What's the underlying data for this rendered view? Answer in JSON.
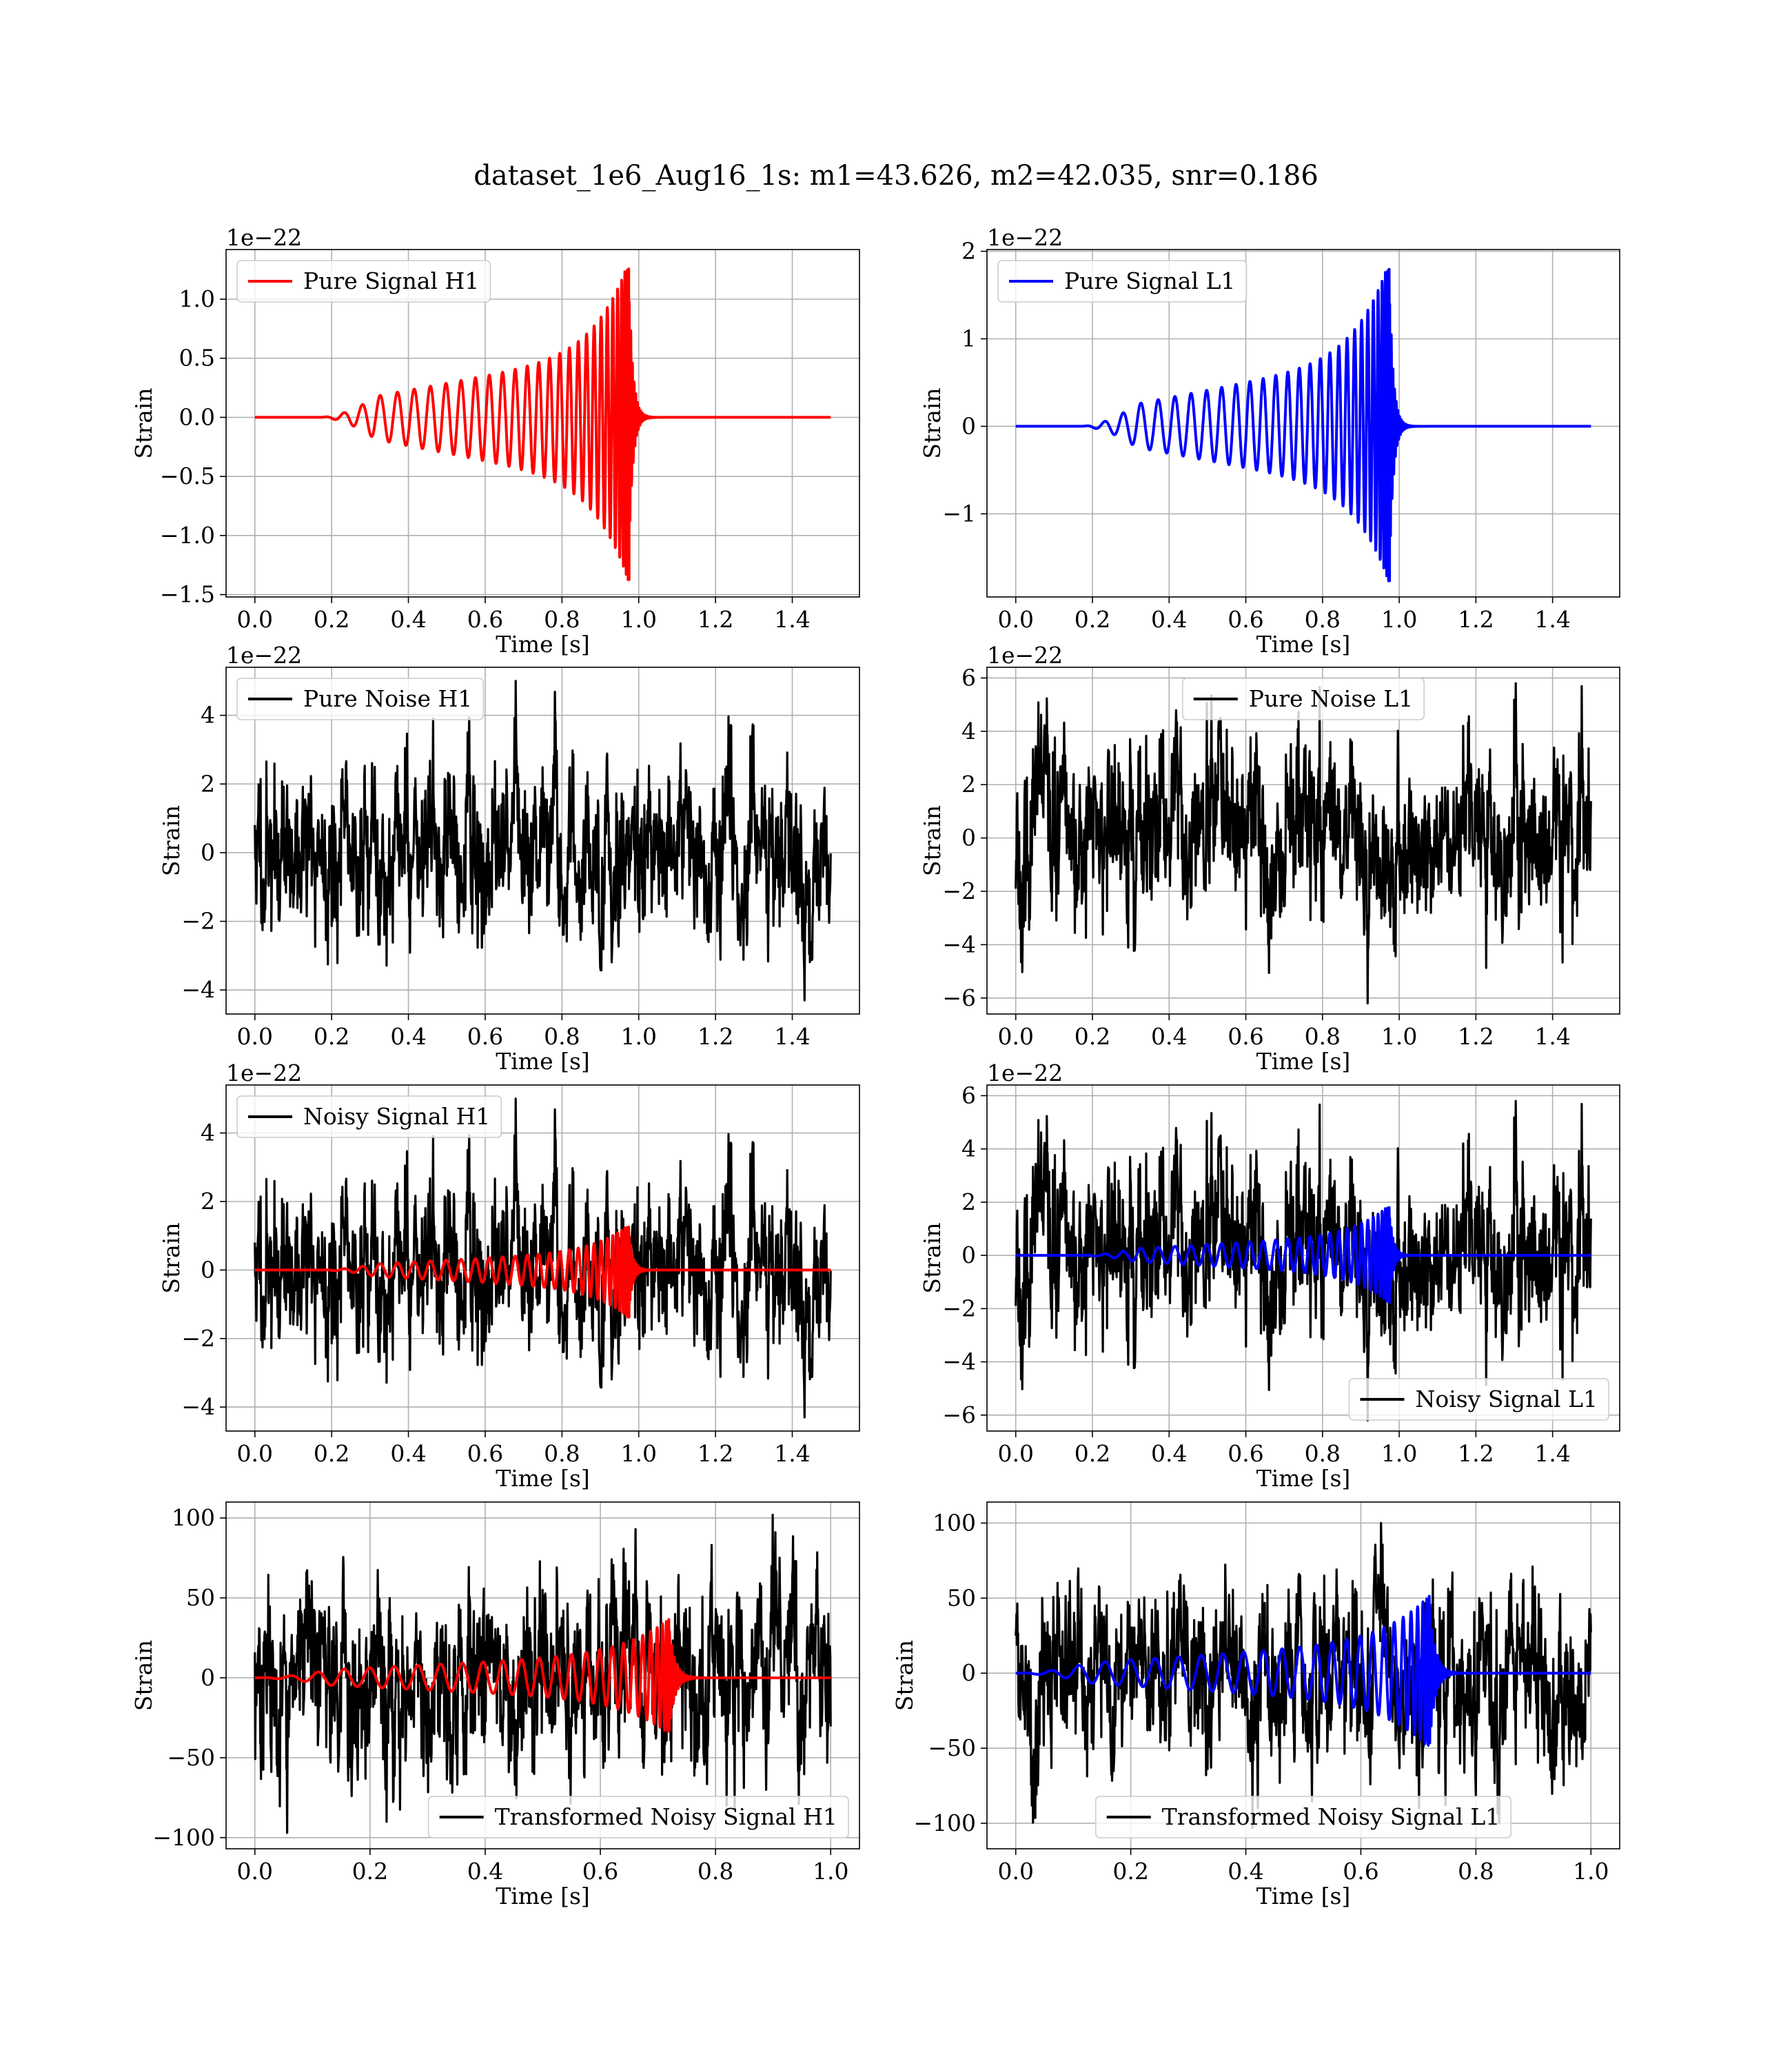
{
  "figure": {
    "title": "dataset_1e6_Aug16_1s: m1=43.626, m2=42.035, snr=0.186",
    "colors": {
      "h1_signal": "#ff0000",
      "l1_signal": "#0000ff",
      "noise": "#000000"
    }
  },
  "chart_data": [
    {
      "type": "line",
      "title": "",
      "xlabel": "Time [s]",
      "ylabel": "Strain",
      "offset_label": "1e−22",
      "xlim": [
        -0.075,
        1.575
      ],
      "ylim": [
        -1.52,
        1.42
      ],
      "xticks": [
        0.0,
        0.2,
        0.4,
        0.6,
        0.8,
        1.0,
        1.2,
        1.4
      ],
      "xtick_labels": [
        "0.0",
        "0.2",
        "0.4",
        "0.6",
        "0.8",
        "1.0",
        "1.2",
        "1.4"
      ],
      "yticks": [
        -1.5,
        -1.0,
        -0.5,
        0.0,
        0.5,
        1.0
      ],
      "ytick_labels": [
        "−1.5",
        "−1.0",
        "−0.5",
        "0.0",
        "0.5",
        "1.0"
      ],
      "grid": true,
      "legend_position": "upper-left",
      "series": [
        {
          "name": "Pure Signal H1",
          "kind": "chirp",
          "color": "#ff0000",
          "x_start": 0.0,
          "x_end": 1.5,
          "t_start": 0.17,
          "t_merge": 0.975,
          "peak_amplitude": 1.33,
          "min_amplitude": -1.4,
          "cycles": 29
        }
      ]
    },
    {
      "type": "line",
      "title": "",
      "xlabel": "Time [s]",
      "ylabel": "Strain",
      "offset_label": "1e−22",
      "xlim": [
        -0.075,
        1.575
      ],
      "ylim": [
        -1.95,
        2.02
      ],
      "xticks": [
        0.0,
        0.2,
        0.4,
        0.6,
        0.8,
        1.0,
        1.2,
        1.4
      ],
      "xtick_labels": [
        "0.0",
        "0.2",
        "0.4",
        "0.6",
        "0.8",
        "1.0",
        "1.2",
        "1.4"
      ],
      "yticks": [
        -1,
        0,
        1,
        2
      ],
      "ytick_labels": [
        "−1",
        "0",
        "1",
        "2"
      ],
      "grid": true,
      "legend_position": "upper-left",
      "series": [
        {
          "name": "Pure Signal L1",
          "kind": "chirp",
          "color": "#0000ff",
          "x_start": 0.0,
          "x_end": 1.5,
          "t_start": 0.17,
          "t_merge": 0.975,
          "peak_amplitude": 1.9,
          "min_amplitude": -1.8,
          "cycles": 29
        }
      ]
    },
    {
      "type": "line",
      "title": "",
      "xlabel": "Time [s]",
      "ylabel": "Strain",
      "offset_label": "1e−22",
      "xlim": [
        -0.075,
        1.575
      ],
      "ylim": [
        -4.7,
        5.4
      ],
      "xticks": [
        0.0,
        0.2,
        0.4,
        0.6,
        0.8,
        1.0,
        1.2,
        1.4
      ],
      "xtick_labels": [
        "0.0",
        "0.2",
        "0.4",
        "0.6",
        "0.8",
        "1.0",
        "1.2",
        "1.4"
      ],
      "yticks": [
        -4,
        -2,
        0,
        2,
        4
      ],
      "ytick_labels": [
        "−4",
        "−2",
        "0",
        "2",
        "4"
      ],
      "grid": true,
      "legend_position": "upper-left",
      "series": [
        {
          "name": "Pure Noise H1",
          "kind": "noise",
          "color": "#000000",
          "x_start": 0.0,
          "x_end": 1.5,
          "max": 5.0,
          "min": -4.3,
          "seed": 11
        }
      ]
    },
    {
      "type": "line",
      "title": "",
      "xlabel": "Time [s]",
      "ylabel": "Strain",
      "offset_label": "1e−22",
      "xlim": [
        -0.075,
        1.575
      ],
      "ylim": [
        -6.6,
        6.4
      ],
      "xticks": [
        0.0,
        0.2,
        0.4,
        0.6,
        0.8,
        1.0,
        1.2,
        1.4
      ],
      "xtick_labels": [
        "0.0",
        "0.2",
        "0.4",
        "0.6",
        "0.8",
        "1.0",
        "1.2",
        "1.4"
      ],
      "yticks": [
        -6,
        -4,
        -2,
        0,
        2,
        4,
        6
      ],
      "ytick_labels": [
        "−6",
        "−4",
        "−2",
        "0",
        "2",
        "4",
        "6"
      ],
      "grid": true,
      "legend_position": "upper-center",
      "series": [
        {
          "name": "Pure Noise L1",
          "kind": "noise",
          "color": "#000000",
          "x_start": 0.0,
          "x_end": 1.5,
          "max": 5.8,
          "min": -6.2,
          "seed": 23
        }
      ]
    },
    {
      "type": "line",
      "title": "",
      "xlabel": "Time [s]",
      "ylabel": "Strain",
      "offset_label": "1e−22",
      "xlim": [
        -0.075,
        1.575
      ],
      "ylim": [
        -4.7,
        5.4
      ],
      "xticks": [
        0.0,
        0.2,
        0.4,
        0.6,
        0.8,
        1.0,
        1.2,
        1.4
      ],
      "xtick_labels": [
        "0.0",
        "0.2",
        "0.4",
        "0.6",
        "0.8",
        "1.0",
        "1.2",
        "1.4"
      ],
      "yticks": [
        -4,
        -2,
        0,
        2,
        4
      ],
      "ytick_labels": [
        "−4",
        "−2",
        "0",
        "2",
        "4"
      ],
      "grid": true,
      "legend_position": "upper-left",
      "series": [
        {
          "name": "Noisy Signal H1",
          "kind": "noise",
          "color": "#000000",
          "x_start": 0.0,
          "x_end": 1.5,
          "max": 5.0,
          "min": -4.3,
          "seed": 11
        },
        {
          "kind": "chirp",
          "color": "#ff0000",
          "x_start": 0.0,
          "x_end": 1.5,
          "t_start": 0.17,
          "t_merge": 0.975,
          "peak_amplitude": 1.33,
          "min_amplitude": -1.4,
          "cycles": 29
        }
      ]
    },
    {
      "type": "line",
      "title": "",
      "xlabel": "Time [s]",
      "ylabel": "Strain",
      "offset_label": "1e−22",
      "xlim": [
        -0.075,
        1.575
      ],
      "ylim": [
        -6.6,
        6.4
      ],
      "xticks": [
        0.0,
        0.2,
        0.4,
        0.6,
        0.8,
        1.0,
        1.2,
        1.4
      ],
      "xtick_labels": [
        "0.0",
        "0.2",
        "0.4",
        "0.6",
        "0.8",
        "1.0",
        "1.2",
        "1.4"
      ],
      "yticks": [
        -6,
        -4,
        -2,
        0,
        2,
        4,
        6
      ],
      "ytick_labels": [
        "−6",
        "−4",
        "−2",
        "0",
        "2",
        "4",
        "6"
      ],
      "grid": true,
      "legend_position": "lower-right",
      "series": [
        {
          "name": "Noisy Signal L1",
          "kind": "noise",
          "color": "#000000",
          "x_start": 0.0,
          "x_end": 1.5,
          "max": 5.8,
          "min": -6.2,
          "seed": 23
        },
        {
          "kind": "chirp",
          "color": "#0000ff",
          "x_start": 0.0,
          "x_end": 1.5,
          "t_start": 0.17,
          "t_merge": 0.975,
          "peak_amplitude": 1.9,
          "min_amplitude": -1.8,
          "cycles": 29
        }
      ]
    },
    {
      "type": "line",
      "title": "",
      "xlabel": "Time [s]",
      "ylabel": "Strain",
      "offset_label": "",
      "xlim": [
        -0.05,
        1.05
      ],
      "ylim": [
        -107,
        110
      ],
      "xticks": [
        0.0,
        0.2,
        0.4,
        0.6,
        0.8,
        1.0
      ],
      "xtick_labels": [
        "0.0",
        "0.2",
        "0.4",
        "0.6",
        "0.8",
        "1.0"
      ],
      "yticks": [
        -100,
        -50,
        0,
        50,
        100
      ],
      "ytick_labels": [
        "−100",
        "−50",
        "0",
        "50",
        "100"
      ],
      "grid": true,
      "legend_position": "lower-right",
      "series": [
        {
          "name": "Transformed Noisy Signal H1",
          "kind": "noise",
          "color": "#000000",
          "x_start": 0.0,
          "x_end": 1.0,
          "max": 102,
          "min": -97,
          "seed": 37
        },
        {
          "kind": "chirp",
          "color": "#ff0000",
          "x_start": 0.0,
          "x_end": 1.0,
          "t_start": 0.0,
          "t_merge": 0.72,
          "peak_amplitude": 37,
          "min_amplitude": -35,
          "cycles": 26
        }
      ]
    },
    {
      "type": "line",
      "title": "",
      "xlabel": "Time [s]",
      "ylabel": "Strain",
      "offset_label": "",
      "xlim": [
        -0.05,
        1.05
      ],
      "ylim": [
        -117,
        114
      ],
      "xticks": [
        0.0,
        0.2,
        0.4,
        0.6,
        0.8,
        1.0
      ],
      "xtick_labels": [
        "0.0",
        "0.2",
        "0.4",
        "0.6",
        "0.8",
        "1.0"
      ],
      "yticks": [
        -100,
        -50,
        0,
        50,
        100
      ],
      "ytick_labels": [
        "−100",
        "−50",
        "0",
        "50",
        "100"
      ],
      "grid": true,
      "legend_position": "lower-center",
      "series": [
        {
          "name": "Transformed Noisy Signal L1",
          "kind": "noise",
          "color": "#000000",
          "x_start": 0.0,
          "x_end": 1.0,
          "max": 100,
          "min": -103,
          "seed": 41
        },
        {
          "kind": "chirp",
          "color": "#0000ff",
          "x_start": 0.0,
          "x_end": 1.0,
          "t_start": 0.0,
          "t_merge": 0.72,
          "peak_amplitude": 52,
          "min_amplitude": -50,
          "cycles": 26
        }
      ]
    }
  ]
}
